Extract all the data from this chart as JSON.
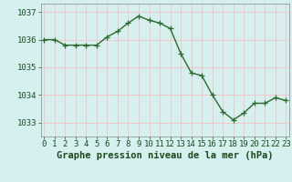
{
  "x": [
    0,
    1,
    2,
    3,
    4,
    5,
    6,
    7,
    8,
    9,
    10,
    11,
    12,
    13,
    14,
    15,
    16,
    17,
    18,
    19,
    20,
    21,
    22,
    23
  ],
  "y": [
    1036.0,
    1036.0,
    1035.8,
    1035.8,
    1035.8,
    1035.8,
    1036.1,
    1036.3,
    1036.6,
    1036.85,
    1036.7,
    1036.6,
    1036.4,
    1035.5,
    1034.8,
    1034.7,
    1034.0,
    1033.4,
    1033.1,
    1033.35,
    1033.7,
    1033.7,
    1033.9,
    1033.8
  ],
  "ylim": [
    1032.5,
    1037.3
  ],
  "yticks": [
    1033,
    1034,
    1035,
    1036,
    1037
  ],
  "xticks": [
    0,
    1,
    2,
    3,
    4,
    5,
    6,
    7,
    8,
    9,
    10,
    11,
    12,
    13,
    14,
    15,
    16,
    17,
    18,
    19,
    20,
    21,
    22,
    23
  ],
  "xlabel": "Graphe pression niveau de la mer (hPa)",
  "line_color": "#2d6a2d",
  "marker": "+",
  "marker_size": 4,
  "bg_color": "#d5f0ee",
  "grid_color": "#f0c8c8",
  "title_color": "#1a4a1a",
  "tick_color": "#1a4a1a",
  "xlabel_fontsize": 7.5,
  "tick_fontsize": 6.5,
  "linewidth": 1.0
}
